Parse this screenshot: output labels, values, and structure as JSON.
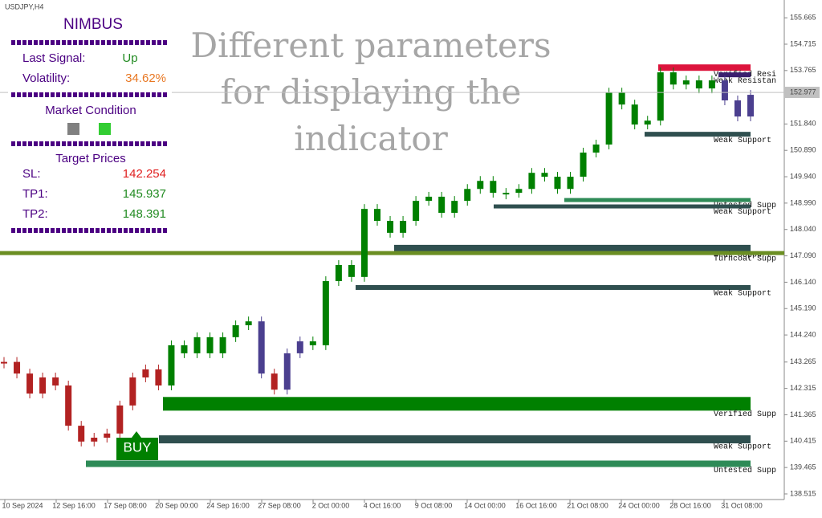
{
  "window_title": "USDJPY,H4",
  "watermark": [
    "Different parameters",
    "for displaying the",
    "indicator"
  ],
  "panel": {
    "title": "NIMBUS",
    "last_signal": {
      "label": "Last Signal:",
      "value": "Up"
    },
    "volatility": {
      "label": "Volatility:",
      "value": "34.62%"
    },
    "market_condition": "Market Condition",
    "target_prices": "Target Prices",
    "targets": [
      {
        "label": "SL:",
        "value": "142.254"
      },
      {
        "label": "TP1:",
        "value": "145.937"
      },
      {
        "label": "TP2:",
        "value": "148.391"
      }
    ]
  },
  "chart_data": {
    "type": "candlestick",
    "closes": [
      143.27,
      142.85,
      142.13,
      142.71,
      142.42,
      140.97,
      140.4,
      140.54,
      140.69,
      141.7,
      142.71,
      143.0,
      142.42,
      143.87,
      143.58,
      144.16,
      143.58,
      144.16,
      144.59,
      144.73,
      142.85,
      142.27,
      143.58,
      144.01,
      143.87,
      146.18,
      146.76,
      146.33,
      148.78,
      148.35,
      147.92,
      148.35,
      149.07,
      149.22,
      148.64,
      149.07,
      149.5,
      149.79,
      149.36,
      149.36,
      149.5,
      150.08,
      149.94,
      149.5,
      149.94,
      150.81,
      151.1,
      152.97,
      152.54,
      151.82,
      151.96,
      153.7,
      153.26,
      153.41,
      153.12,
      153.41,
      152.69,
      152.11,
      152.89
    ],
    "colors": [
      "#b22222",
      "#b22222",
      "#b22222",
      "#b22222",
      "#b22222",
      "#b22222",
      "#b22222",
      "#b22222",
      "#b22222",
      "#b22222",
      "#b22222",
      "#b22222",
      "#b22222",
      "#008000",
      "#008000",
      "#008000",
      "#008000",
      "#008000",
      "#008000",
      "#008000",
      "#4b3f8f",
      "#b22222",
      "#4b3f8f",
      "#4b3f8f",
      "#008000",
      "#008000",
      "#008000",
      "#008000",
      "#008000",
      "#008000",
      "#008000",
      "#008000",
      "#008000",
      "#008000",
      "#008000",
      "#008000",
      "#008000",
      "#008000",
      "#008000",
      "#008000",
      "#008000",
      "#008000",
      "#008000",
      "#008000",
      "#008000",
      "#008000",
      "#008000",
      "#008000",
      "#008000",
      "#008000",
      "#008000",
      "#008000",
      "#008000",
      "#008000",
      "#008000",
      "#008000",
      "#4b3f8f",
      "#4b3f8f",
      "#4b3f8f"
    ],
    "ylim": [
      138.37,
      156.19
    ],
    "yticks": [
      155.665,
      154.715,
      153.765,
      {
        "value": 151.84,
        "label": "151.840"
      },
      {
        "value": 150.89,
        "label": "150.890"
      },
      {
        "value": 149.94,
        "label": "149.940"
      },
      {
        "value": 148.99,
        "label": "148.990"
      },
      {
        "value": 148.04,
        "label": "148.040"
      },
      {
        "value": 147.09,
        "label": "147.090"
      },
      {
        "value": 146.14,
        "label": "146.140"
      },
      {
        "value": 145.19,
        "label": "145.190"
      },
      {
        "value": 144.24,
        "label": "144.240"
      },
      143.265,
      142.315,
      141.365,
      140.415,
      139.465,
      138.515
    ],
    "x_labels": [
      "10 Sep 2024",
      "12 Sep 16:00",
      "17 Sep 08:00",
      "20 Sep 00:00",
      "24 Sep 16:00",
      "27 Sep 08:00",
      "2 Oct 00:00",
      "4 Oct 16:00",
      "9 Oct 08:00",
      "14 Oct 00:00",
      "16 Oct 16:00",
      "21 Oct 08:00",
      "24 Oct 00:00",
      "28 Oct 16:00",
      "31 Oct 08:00"
    ],
    "current_price": 152.977,
    "signal": "BUY",
    "levels": [
      {
        "name": "Verified Resi",
        "value": 153.87,
        "color": "#dc143c"
      },
      {
        "name": "Weak Resistan",
        "value": 153.61,
        "color": "#3b1f6e"
      },
      {
        "name": "Weak Support",
        "value": 151.47,
        "color": "#2f4f4f"
      },
      {
        "name": "Untested Supp",
        "value": 149.1,
        "color": "#2e8b57"
      },
      {
        "name": "Weak Support",
        "value": 148.87,
        "color": "#2f4f4f"
      },
      {
        "name": "Weak Support",
        "value": 147.37,
        "color": "#2f4f4f"
      },
      {
        "name": "Turncoat Supp",
        "value": 147.19,
        "color": "#6b8e23"
      },
      {
        "name": "Weak Support",
        "value": 145.95,
        "color": "#2f4f4f"
      },
      {
        "name": "Verified Supp",
        "value": 141.76,
        "color": "#008000"
      },
      {
        "name": "Weak Support",
        "value": 140.48,
        "color": "#2f4f4f"
      },
      {
        "name": "Untested Supp",
        "value": 139.6,
        "color": "#2e8b57"
      }
    ]
  }
}
